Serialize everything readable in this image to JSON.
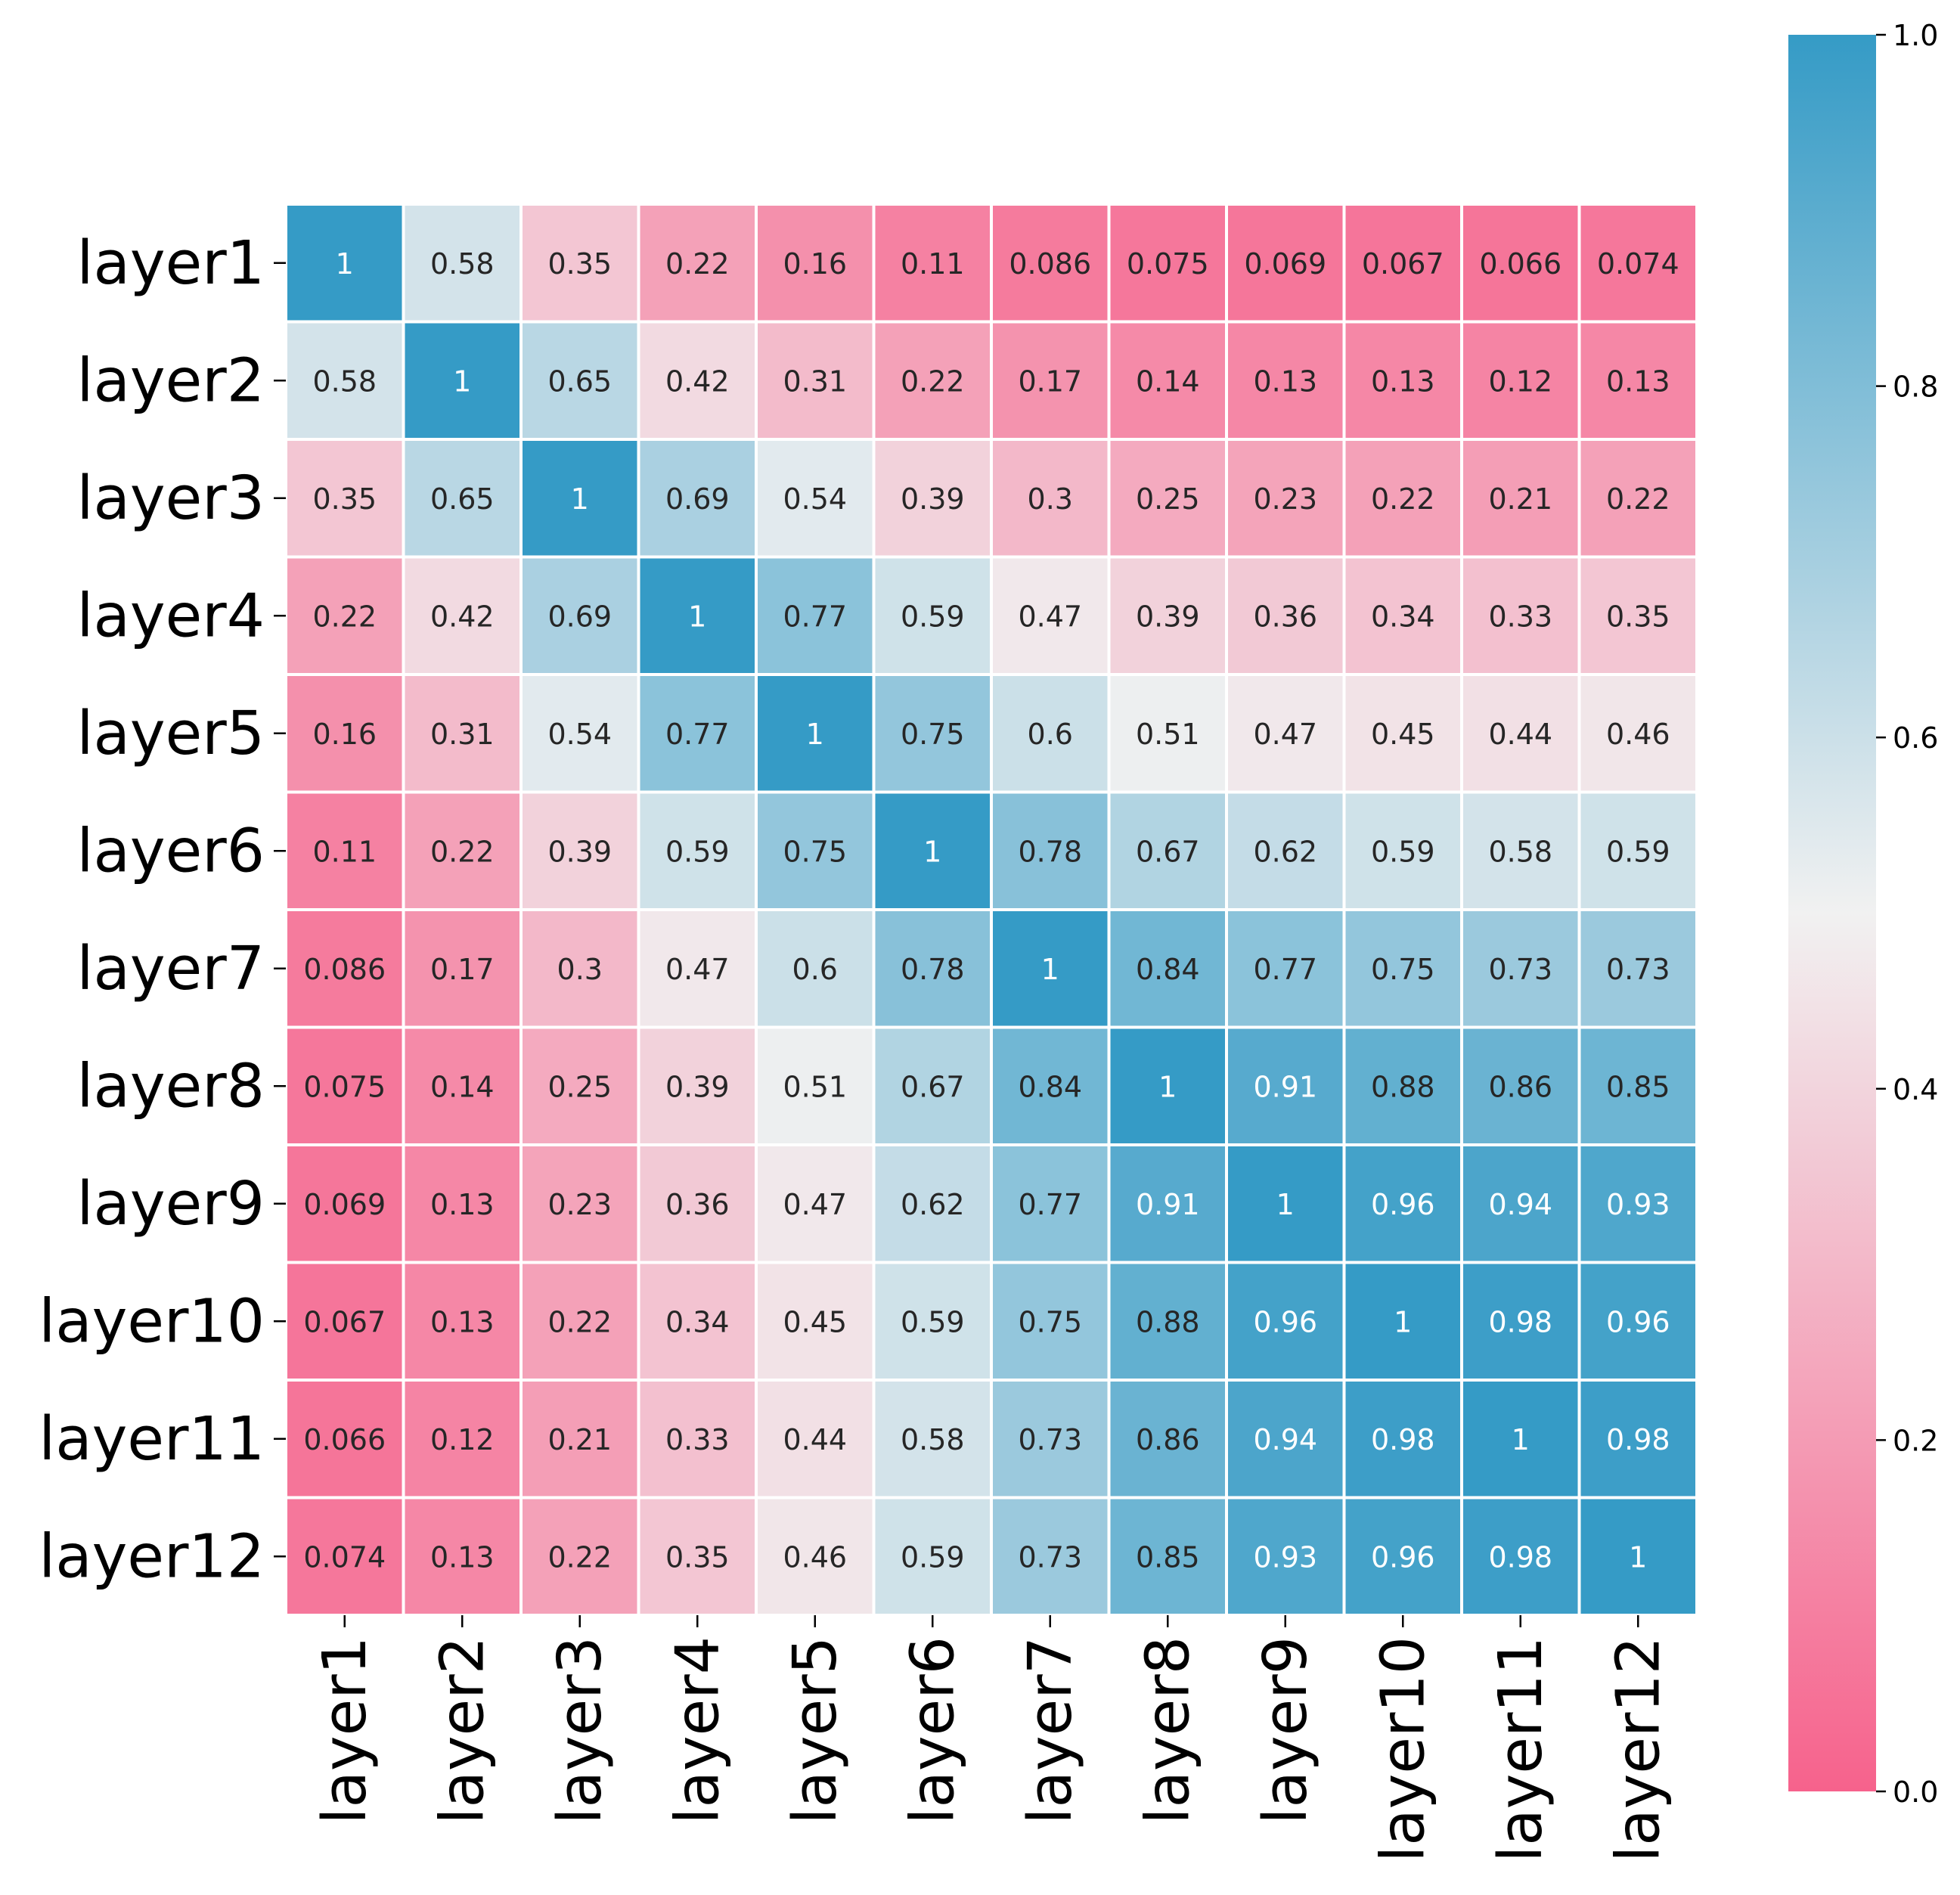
{
  "chart_data": {
    "type": "heatmap",
    "rows": [
      "layer1",
      "layer2",
      "layer3",
      "layer4",
      "layer5",
      "layer6",
      "layer7",
      "layer8",
      "layer9",
      "layer10",
      "layer11",
      "layer12"
    ],
    "columns": [
      "layer1",
      "layer2",
      "layer3",
      "layer4",
      "layer5",
      "layer6",
      "layer7",
      "layer8",
      "layer9",
      "layer10",
      "layer11",
      "layer12"
    ],
    "values": [
      [
        1,
        0.58,
        0.35,
        0.22,
        0.16,
        0.11,
        0.086,
        0.075,
        0.069,
        0.067,
        0.066,
        0.074
      ],
      [
        0.58,
        1,
        0.65,
        0.42,
        0.31,
        0.22,
        0.17,
        0.14,
        0.13,
        0.13,
        0.12,
        0.13
      ],
      [
        0.35,
        0.65,
        1,
        0.69,
        0.54,
        0.39,
        0.3,
        0.25,
        0.23,
        0.22,
        0.21,
        0.22
      ],
      [
        0.22,
        0.42,
        0.69,
        1,
        0.77,
        0.59,
        0.47,
        0.39,
        0.36,
        0.34,
        0.33,
        0.35
      ],
      [
        0.16,
        0.31,
        0.54,
        0.77,
        1,
        0.75,
        0.6,
        0.51,
        0.47,
        0.45,
        0.44,
        0.46
      ],
      [
        0.11,
        0.22,
        0.39,
        0.59,
        0.75,
        1,
        0.78,
        0.67,
        0.62,
        0.59,
        0.58,
        0.59
      ],
      [
        0.086,
        0.17,
        0.3,
        0.47,
        0.6,
        0.78,
        1,
        0.84,
        0.77,
        0.75,
        0.73,
        0.73
      ],
      [
        0.075,
        0.14,
        0.25,
        0.39,
        0.51,
        0.67,
        0.84,
        1,
        0.91,
        0.88,
        0.86,
        0.85
      ],
      [
        0.069,
        0.13,
        0.23,
        0.36,
        0.47,
        0.62,
        0.77,
        0.91,
        1,
        0.96,
        0.94,
        0.93
      ],
      [
        0.067,
        0.13,
        0.22,
        0.34,
        0.45,
        0.59,
        0.75,
        0.88,
        0.96,
        1,
        0.98,
        0.96
      ],
      [
        0.066,
        0.12,
        0.21,
        0.33,
        0.44,
        0.58,
        0.73,
        0.86,
        0.94,
        0.98,
        1,
        0.98
      ],
      [
        0.074,
        0.13,
        0.22,
        0.35,
        0.46,
        0.59,
        0.73,
        0.85,
        0.93,
        0.96,
        0.98,
        1
      ]
    ],
    "cell_labels": [
      [
        "1",
        "0.58",
        "0.35",
        "0.22",
        "0.16",
        "0.11",
        "0.086",
        "0.075",
        "0.069",
        "0.067",
        "0.066",
        "0.074"
      ],
      [
        "0.58",
        "1",
        "0.65",
        "0.42",
        "0.31",
        "0.22",
        "0.17",
        "0.14",
        "0.13",
        "0.13",
        "0.12",
        "0.13"
      ],
      [
        "0.35",
        "0.65",
        "1",
        "0.69",
        "0.54",
        "0.39",
        "0.3",
        "0.25",
        "0.23",
        "0.22",
        "0.21",
        "0.22"
      ],
      [
        "0.22",
        "0.42",
        "0.69",
        "1",
        "0.77",
        "0.59",
        "0.47",
        "0.39",
        "0.36",
        "0.34",
        "0.33",
        "0.35"
      ],
      [
        "0.16",
        "0.31",
        "0.54",
        "0.77",
        "1",
        "0.75",
        "0.6",
        "0.51",
        "0.47",
        "0.45",
        "0.44",
        "0.46"
      ],
      [
        "0.11",
        "0.22",
        "0.39",
        "0.59",
        "0.75",
        "1",
        "0.78",
        "0.67",
        "0.62",
        "0.59",
        "0.58",
        "0.59"
      ],
      [
        "0.086",
        "0.17",
        "0.3",
        "0.47",
        "0.6",
        "0.78",
        "1",
        "0.84",
        "0.77",
        "0.75",
        "0.73",
        "0.73"
      ],
      [
        "0.075",
        "0.14",
        "0.25",
        "0.39",
        "0.51",
        "0.67",
        "0.84",
        "1",
        "0.91",
        "0.88",
        "0.86",
        "0.85"
      ],
      [
        "0.069",
        "0.13",
        "0.23",
        "0.36",
        "0.47",
        "0.62",
        "0.77",
        "0.91",
        "1",
        "0.96",
        "0.94",
        "0.93"
      ],
      [
        "0.067",
        "0.13",
        "0.22",
        "0.34",
        "0.45",
        "0.59",
        "0.75",
        "0.88",
        "0.96",
        "1",
        "0.98",
        "0.96"
      ],
      [
        "0.066",
        "0.12",
        "0.21",
        "0.33",
        "0.44",
        "0.58",
        "0.73",
        "0.86",
        "0.94",
        "0.98",
        "1",
        "0.98"
      ],
      [
        "0.074",
        "0.13",
        "0.22",
        "0.35",
        "0.46",
        "0.59",
        "0.73",
        "0.85",
        "0.93",
        "0.96",
        "0.98",
        "1"
      ]
    ],
    "colorbar": {
      "range": [
        0.0,
        1.0
      ],
      "ticks": [
        0.0,
        0.2,
        0.4,
        0.6,
        0.8,
        1.0
      ],
      "tick_labels": [
        "0.0",
        "0.2",
        "0.4",
        "0.6",
        "0.8",
        "1.0"
      ]
    },
    "colormap": {
      "low": "#f6628c",
      "mid": "#f1f1f1",
      "high": "#359bc6"
    },
    "annotation_dark_text": "#262626",
    "annotation_light_text": "#ffffff",
    "cell_border": "#ffffff",
    "title": "",
    "xlabel": "",
    "ylabel": ""
  }
}
